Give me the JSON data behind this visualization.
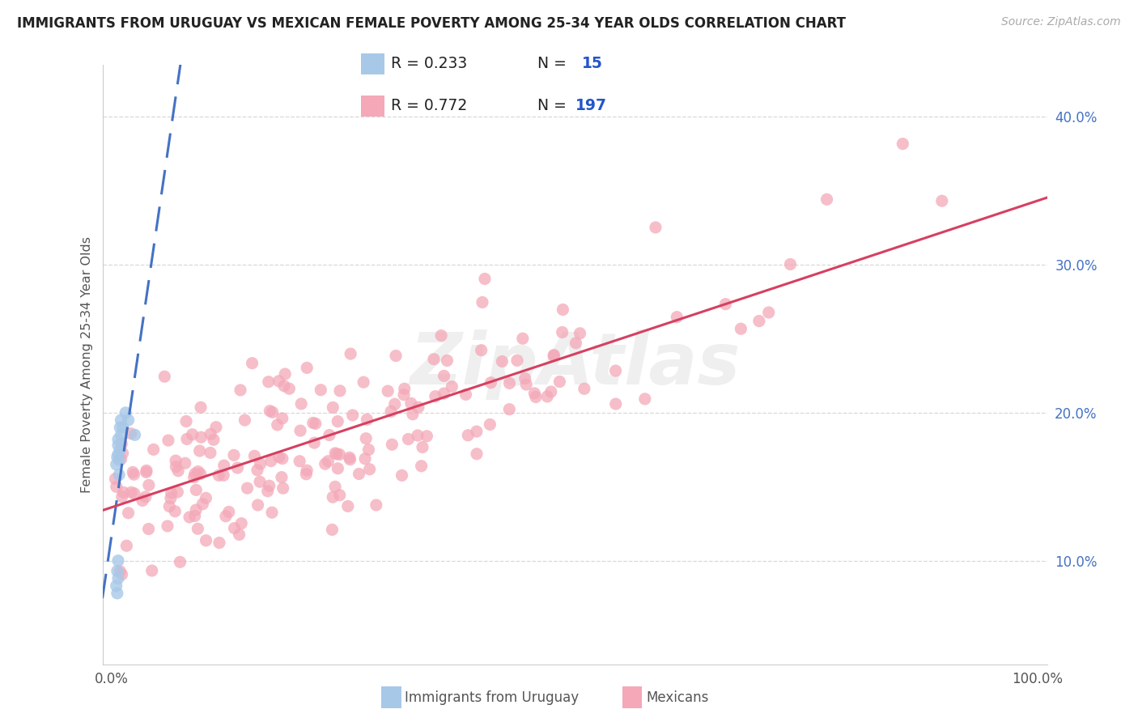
{
  "title": "IMMIGRANTS FROM URUGUAY VS MEXICAN FEMALE POVERTY AMONG 25-34 YEAR OLDS CORRELATION CHART",
  "source": "Source: ZipAtlas.com",
  "ylabel": "Female Poverty Among 25-34 Year Olds",
  "xlim": [
    -0.01,
    1.01
  ],
  "ylim": [
    0.03,
    0.435
  ],
  "yticks": [
    0.1,
    0.2,
    0.3,
    0.4
  ],
  "yticklabels": [
    "10.0%",
    "20.0%",
    "30.0%",
    "40.0%"
  ],
  "xtick_labels": [
    "0.0%",
    "100.0%"
  ],
  "xtick_vals": [
    0.0,
    1.0
  ],
  "r1": "R = 0.233",
  "n1": "N =  15",
  "r2": "R = 0.772",
  "n2": "N = 197",
  "uruguay_color": "#a8c8e8",
  "mexico_color": "#f4a8b8",
  "trend_uru_color": "#4472c4",
  "trend_mex_color": "#d64060",
  "tick_color": "#4472c4",
  "label_color": "#555555",
  "grid_color": "#d8d8d8",
  "bg_color": "#ffffff",
  "title_color": "#222222",
  "legend_label1": "Immigrants from Uruguay",
  "legend_label2": "Mexicans"
}
